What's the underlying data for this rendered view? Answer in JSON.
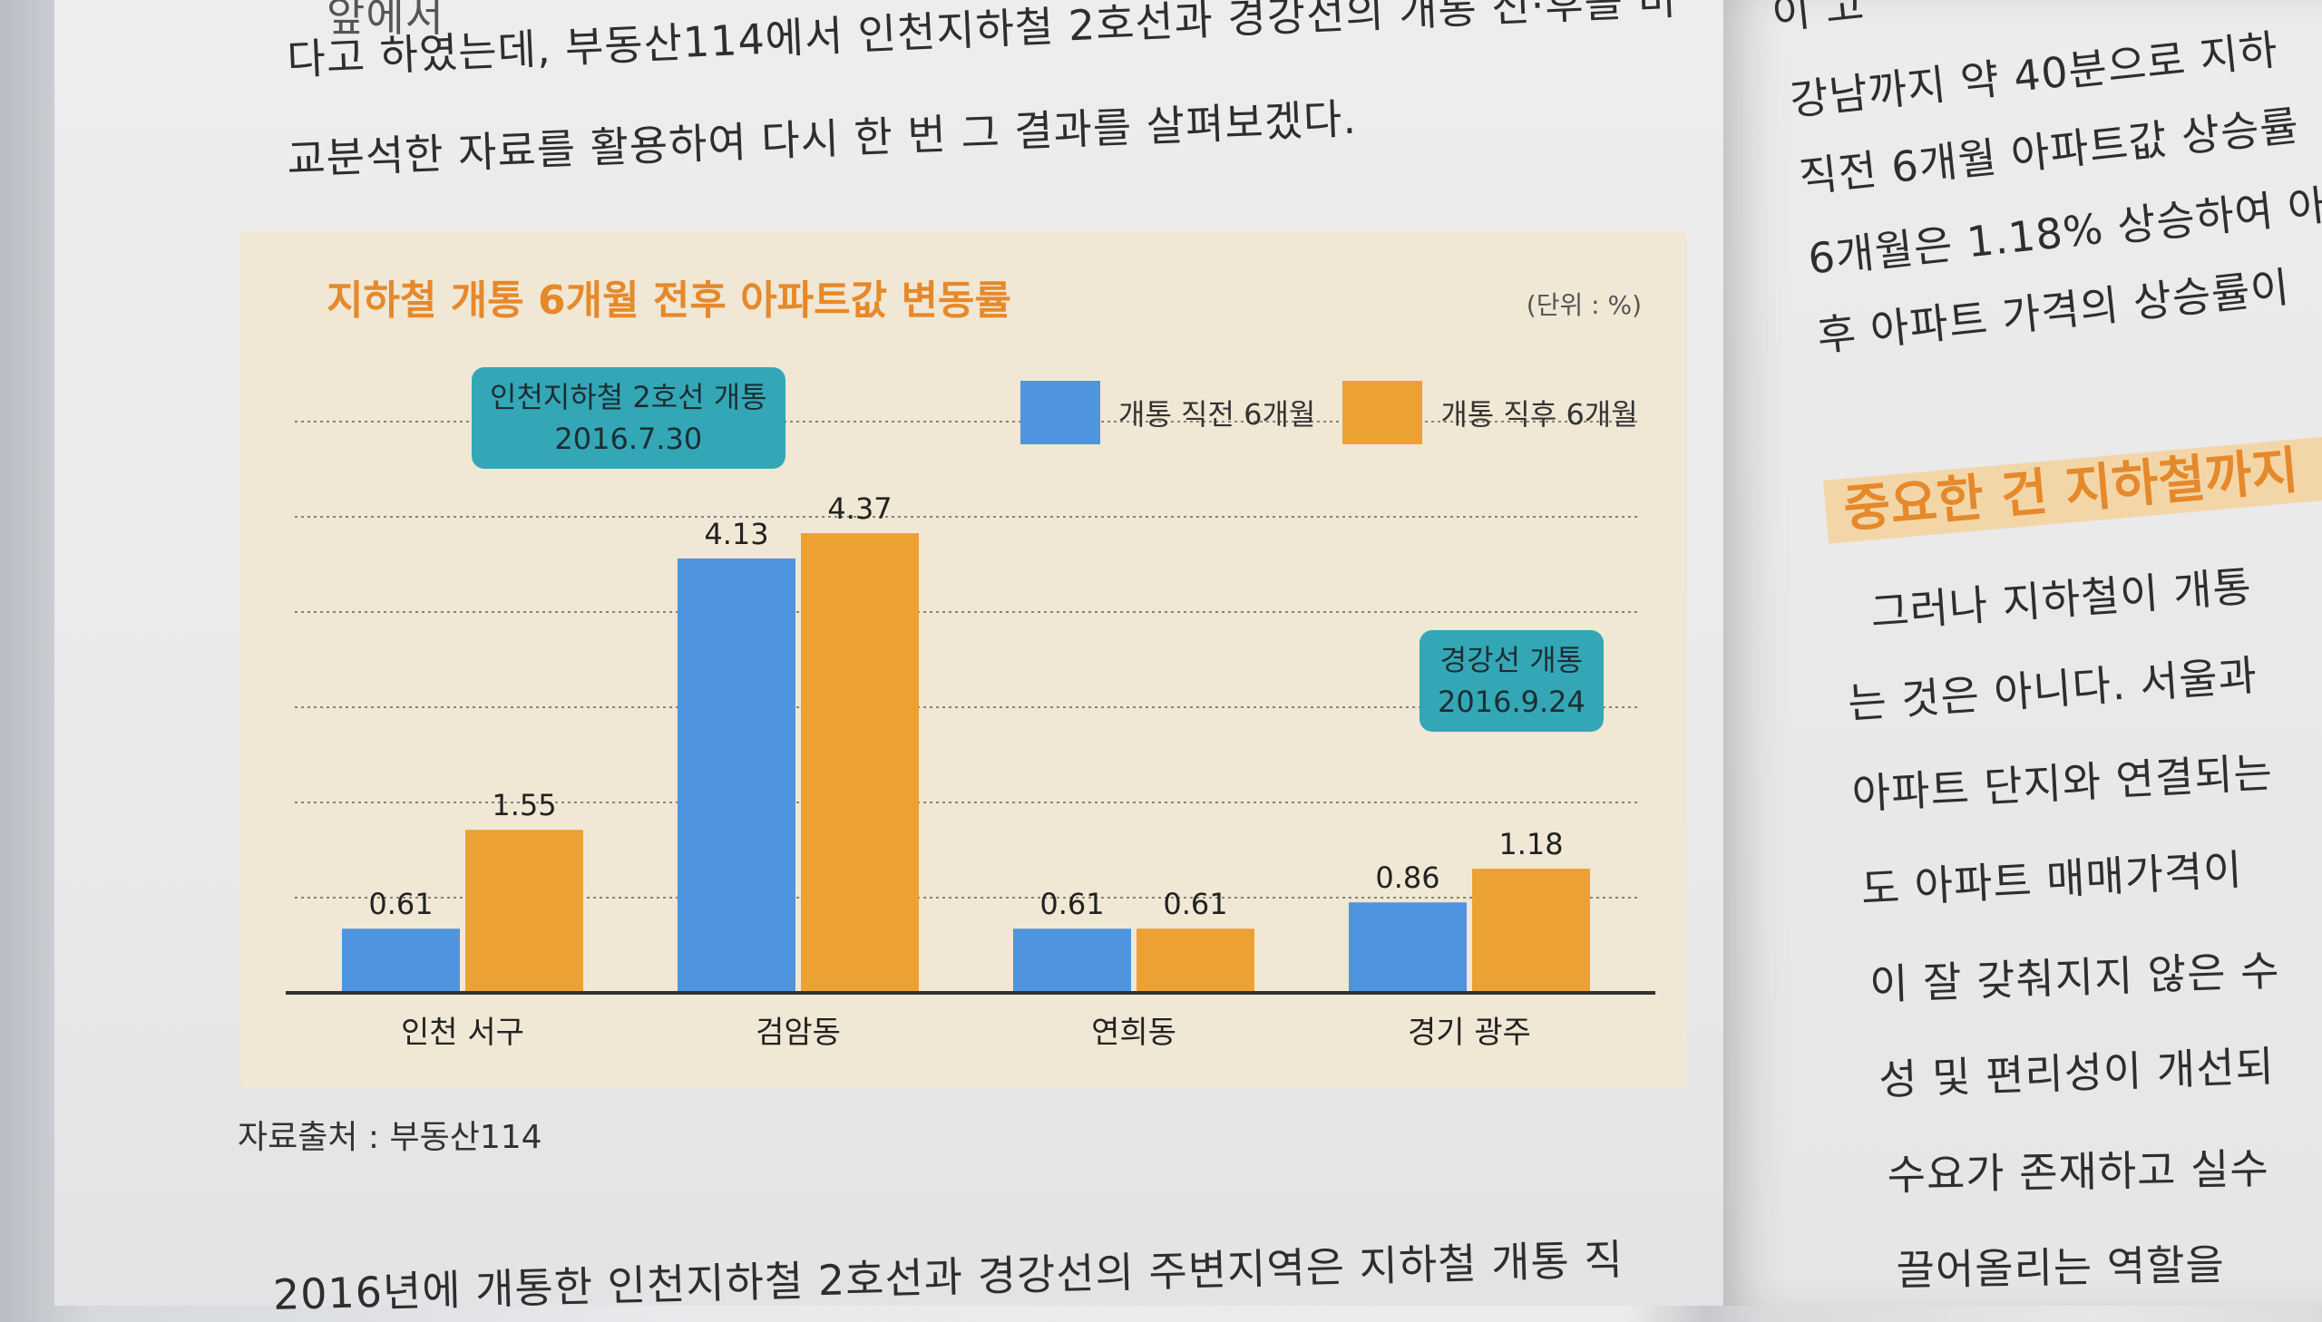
{
  "left_page": {
    "top_partial": "앞에서",
    "line1": "다고 하였는데, 부동산114에서 인천지하철 2호선과 경강선의 개통 전·후를 비",
    "line2": "교분석한 자료를 활용하여 다시 한 번 그 결과를 살펴보겠다.",
    "bottom_partial": "2016년에 개통한 인천지하철 2호선과 경강선의 주변지역은 지하철 개통 직"
  },
  "chart": {
    "title": "지하철 개통 6개월 전후 아파트값 변동률",
    "unit": "(단위 : %)",
    "callout_incheon": {
      "line1": "인천지하철 2호선 개통",
      "line2": "2016.7.30"
    },
    "callout_gyeonggang": {
      "line1": "경강선 개통",
      "line2": "2016.9.24"
    },
    "legend": [
      {
        "label": "개통 직전 6개월",
        "color": "#4f94de"
      },
      {
        "label": "개통 직후 6개월",
        "color": "#eba232"
      }
    ],
    "source": "자료출처 : 부동산114"
  },
  "chart_data": {
    "type": "bar",
    "categories": [
      "인천 서구",
      "검암동",
      "연희동",
      "경기 광주"
    ],
    "series": [
      {
        "name": "개통 직전 6개월",
        "values": [
          0.61,
          4.13,
          0.61,
          0.86
        ]
      },
      {
        "name": "개통 직후 6개월",
        "values": [
          1.55,
          4.37,
          0.61,
          1.18
        ]
      }
    ],
    "value_labels": [
      [
        "0.61",
        "4.13",
        "0.61",
        "0.86"
      ],
      [
        "1.55",
        "4.37",
        "0.61",
        "1.18"
      ]
    ],
    "ylim": [
      0,
      5
    ],
    "grid": true,
    "legend_position": "top-right"
  },
  "right_page": {
    "lines": [
      "이 고",
      "강남까지 약 40분으로 지하",
      "직전 6개월 아파트값 상승률",
      "6개월은 1.18% 상승하여 아",
      "후 아파트 가격의 상승률이"
    ],
    "heading": "중요한 건 지하철까지",
    "para": [
      "그러나 지하철이 개통",
      "는 것은 아니다. 서울과",
      "아파트 단지와 연결되는",
      "도 아파트 매매가격이",
      "이 잘 갖춰지지 않은 수",
      "성 및 편리성이 개선되",
      "수요가 존재하고 실수",
      "끌어올리는 역할을"
    ]
  }
}
